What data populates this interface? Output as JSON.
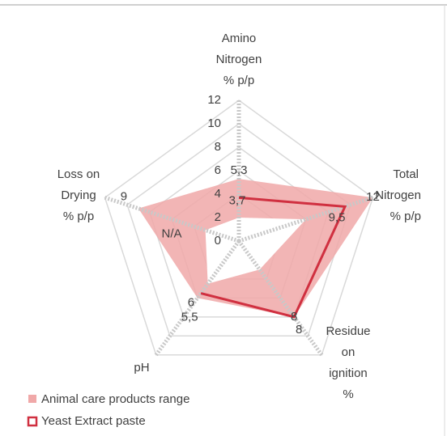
{
  "chart_data": {
    "type": "radar",
    "categories": [
      [
        "Amino",
        "Nitrogen",
        "% p/p"
      ],
      [
        "Total",
        "Nitrogen",
        "% p/p"
      ],
      [
        "Residue",
        "on",
        "ignition",
        "%"
      ],
      [
        "pH"
      ],
      [
        "Loss on",
        "Drying",
        "% p/p"
      ]
    ],
    "rlim": [
      0,
      12
    ],
    "rticks": [
      0,
      2,
      4,
      6,
      8,
      10,
      12
    ],
    "series": [
      {
        "name": "Animal care products range",
        "color": "#f0a8a8",
        "values": [
          5.3,
          12,
          8,
          6,
          9
        ],
        "value_labels": [
          "5,3",
          "12",
          "8",
          "6",
          "9"
        ],
        "lower": [
          2,
          6,
          3,
          4.5,
          3
        ]
      },
      {
        "name": "Yeast Extract paste",
        "color": "#d03040",
        "values": [
          3.7,
          9.5,
          8,
          5.5,
          null
        ],
        "value_labels": [
          "3,7",
          "9,5",
          "8",
          "5,5",
          "N/A"
        ]
      }
    ]
  }
}
